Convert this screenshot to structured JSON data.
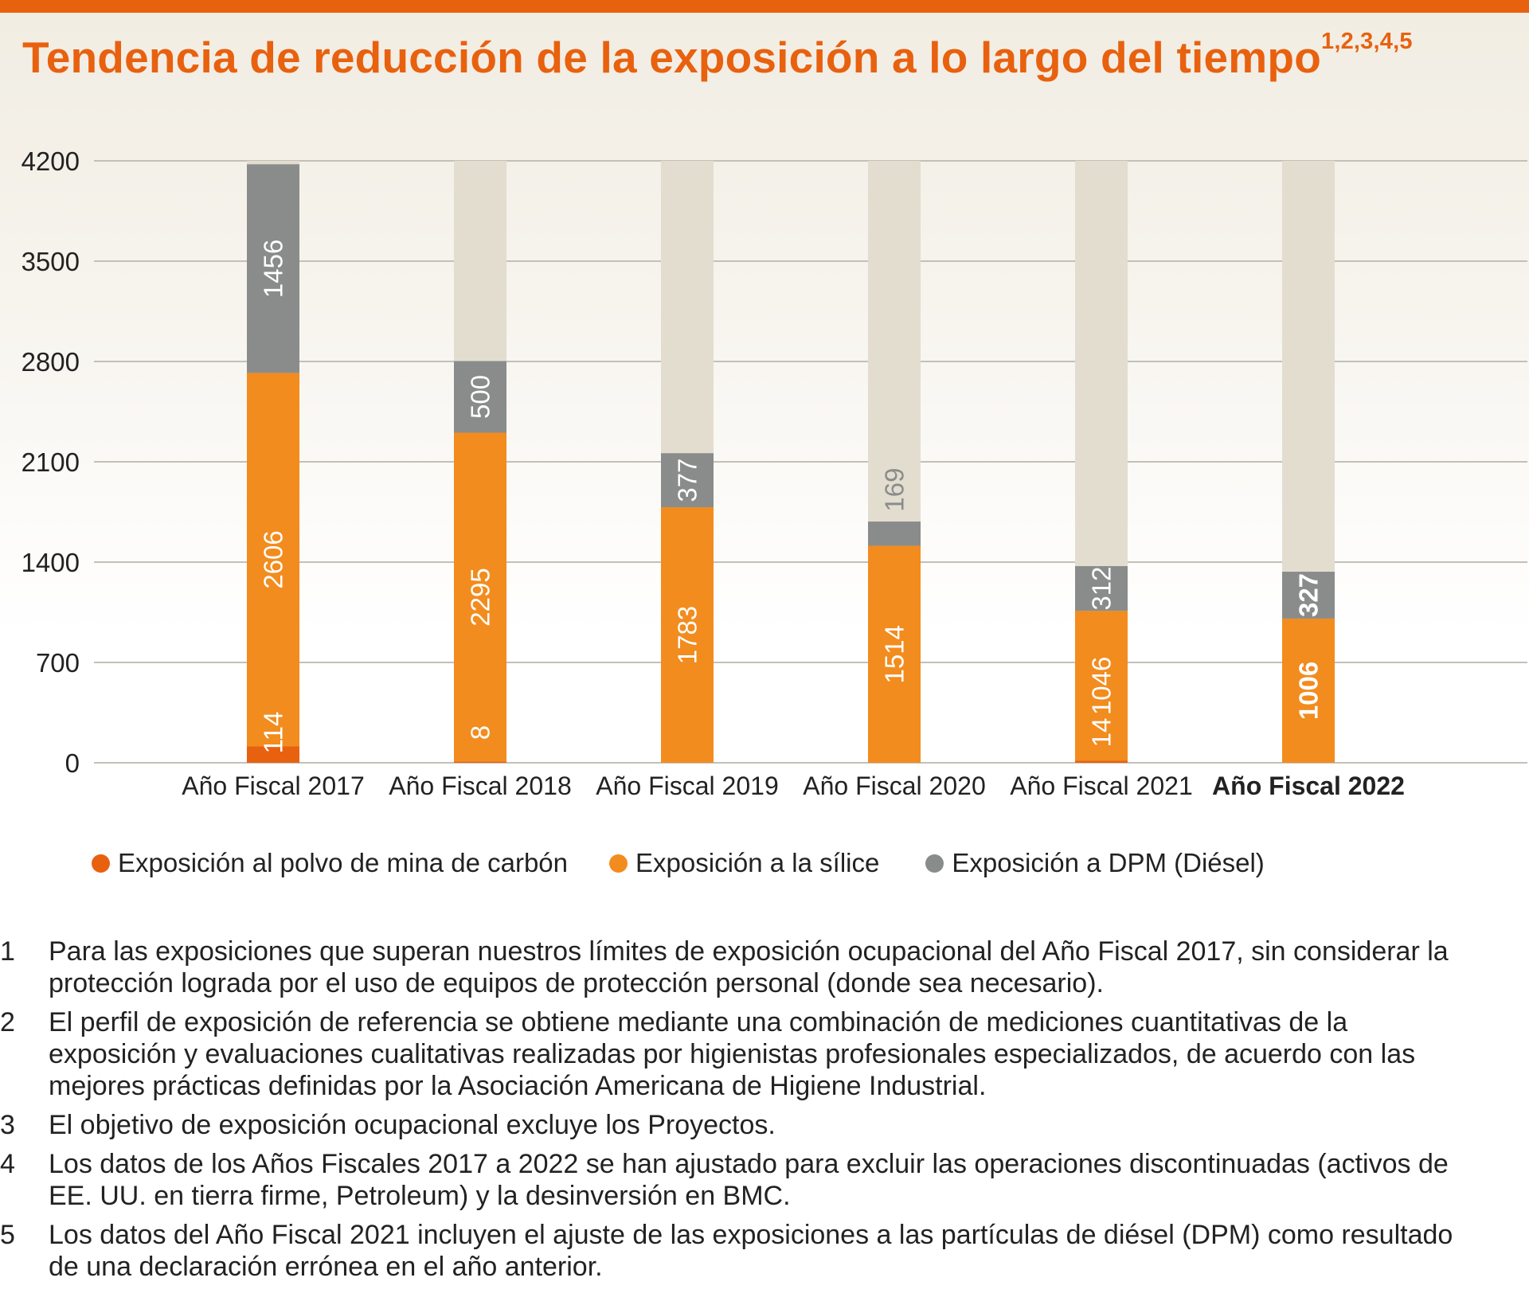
{
  "title": "Tendencia de reducción de la exposición a lo largo del tiempo",
  "title_sup": "1,2,3,4,5",
  "colors": {
    "coal": "#e8610f",
    "silica": "#f28c1e",
    "dpm": "#8a8c8c",
    "track": "#e3ddd0",
    "accent": "#e8610f"
  },
  "chart_data": {
    "type": "bar",
    "stacked": true,
    "categories": [
      "Año Fiscal 2017",
      "Año Fiscal 2018",
      "Año Fiscal 2019",
      "Año Fiscal 2020",
      "Año Fiscal 2021",
      "Año Fiscal 2022"
    ],
    "highlight_category": "Año Fiscal 2022",
    "series": [
      {
        "name": "Exposición al polvo de mina de carbón",
        "values": [
          114,
          8,
          0,
          0,
          14,
          0
        ],
        "labels": [
          "114",
          "8",
          "",
          "",
          "14",
          ""
        ]
      },
      {
        "name": "Exposición a la sílice",
        "values": [
          2606,
          2295,
          1783,
          1514,
          1046,
          1006
        ],
        "labels": [
          "2606",
          "2295",
          "1783",
          "1514",
          "1046",
          "1006"
        ]
      },
      {
        "name": "Exposición a DPM (Diésel)",
        "values": [
          1456,
          500,
          377,
          169,
          312,
          327
        ],
        "labels": [
          "1456",
          "500",
          "377",
          "169",
          "312",
          "327"
        ]
      }
    ],
    "yticks": [
      "0",
      "700",
      "1400",
      "2100",
      "2800",
      "3500",
      "4200"
    ],
    "ylim": [
      0,
      4200
    ],
    "grid": true,
    "legend_position": "bottom"
  },
  "footnotes": [
    {
      "num": "1",
      "text": "Para las exposiciones que superan nuestros límites de exposición ocupacional del Año Fiscal 2017, sin considerar la protección lograda por el uso de equipos de protección personal (donde sea necesario)."
    },
    {
      "num": "2",
      "text": "El perfil de exposición de referencia se obtiene mediante una combinación de mediciones cuantitativas de la exposición y evaluaciones cualitativas realizadas por higienistas profesionales especializados, de acuerdo con las mejores prácticas definidas por la Asociación Americana de Higiene Industrial."
    },
    {
      "num": "3",
      "text": "El objetivo de exposición ocupacional excluye los Proyectos."
    },
    {
      "num": "4",
      "text": "Los datos de los Años Fiscales 2017 a 2022 se han ajustado para excluir las operaciones discontinuadas (activos de EE. UU. en tierra firme, Petroleum) y la desinversión en BMC."
    },
    {
      "num": "5",
      "text": "Los datos del Año Fiscal 2021 incluyen el ajuste de las exposiciones a las partículas de diésel (DPM) como resultado de una declaración errónea en el año anterior."
    }
  ]
}
